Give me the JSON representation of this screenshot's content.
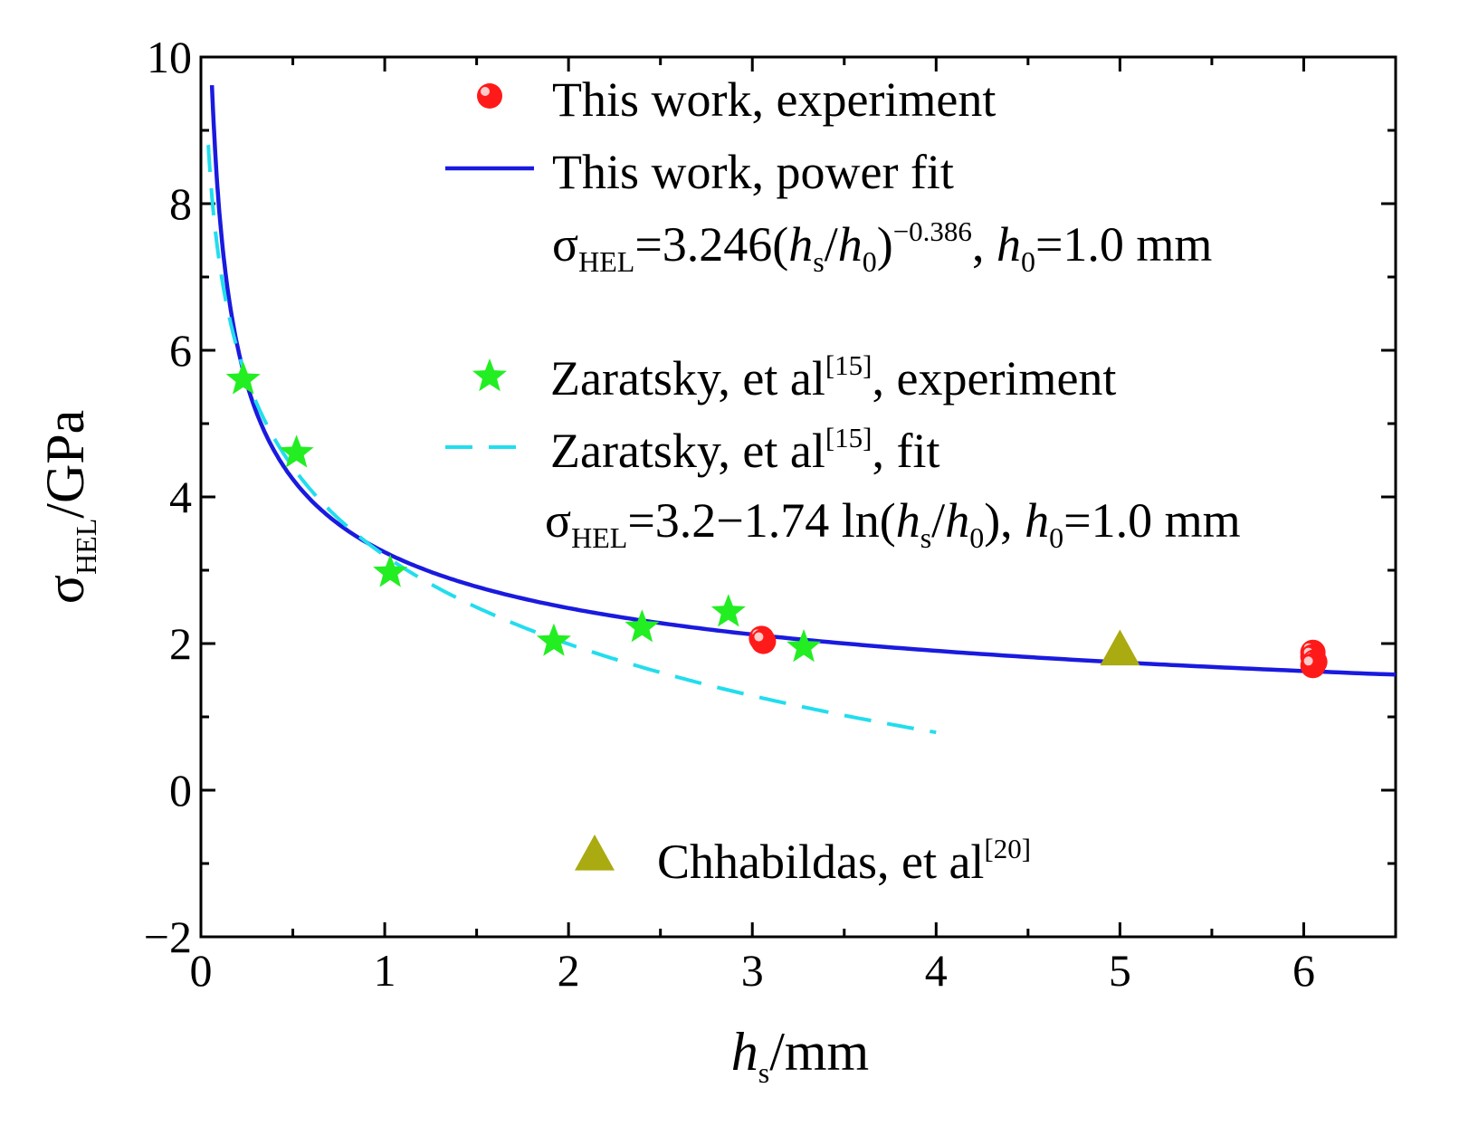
{
  "chart_data": {
    "type": "scatter",
    "xlabel": {
      "var": "h",
      "sub": "s",
      "unit": "/mm"
    },
    "ylabel": {
      "var": "σ",
      "sub": "HEL",
      "unit": "/GPa"
    },
    "xlim": [
      0,
      6.5
    ],
    "ylim": [
      -2,
      10
    ],
    "x_ticks": [
      "0",
      "1",
      "2",
      "3",
      "4",
      "5",
      "6"
    ],
    "y_ticks": [
      "−2",
      "0",
      "2",
      "4",
      "6",
      "8",
      "10"
    ],
    "series": [
      {
        "name": "This work, experiment",
        "kind": "points",
        "marker": "circle",
        "color": "#ff1a1a",
        "x": [
          3.05,
          3.06,
          6.05,
          6.05,
          6.06,
          6.05
        ],
        "y": [
          2.07,
          2.03,
          1.88,
          1.82,
          1.75,
          1.7
        ]
      },
      {
        "name": "This work, power fit",
        "kind": "line",
        "style": "solid",
        "color": "#1a1adf",
        "equation": {
          "coef": 3.246,
          "exponent": -0.386,
          "h0": 1.0
        },
        "x_range": [
          0.06,
          6.5
        ]
      },
      {
        "name": "Zaratsky, et al[15], experiment",
        "kind": "points",
        "marker": "star",
        "color": "#22ee22",
        "x": [
          0.23,
          0.52,
          1.03,
          1.92,
          2.4,
          2.87,
          3.28
        ],
        "y": [
          5.6,
          4.6,
          2.97,
          2.03,
          2.22,
          2.43,
          1.95
        ]
      },
      {
        "name": "Zaratsky, et al[15], fit",
        "kind": "line",
        "style": "dashed",
        "color": "#22ddee",
        "equation": {
          "a": 3.2,
          "b": 1.74,
          "h0": 1.0
        },
        "x_range": [
          0.04,
          4.0
        ]
      },
      {
        "name": "Chhabildas, et al[20]",
        "kind": "points",
        "marker": "triangle",
        "color": "#aaaa11",
        "x": [
          5.0
        ],
        "y": [
          1.92
        ]
      }
    ],
    "legend": {
      "position": "top-right",
      "items": [
        {
          "marker": "circle",
          "parts": [
            {
              "t": "This work, experiment"
            }
          ]
        },
        {
          "marker": "line-solid",
          "parts": [
            {
              "t": "This work, power fit"
            }
          ]
        },
        {
          "marker": "none",
          "formula": true,
          "parts": [
            {
              "t": "σ"
            },
            {
              "t": "HEL",
              "s": "sub"
            },
            {
              "t": "=3.246("
            },
            {
              "t": "h",
              "i": true
            },
            {
              "t": "s",
              "s": "sub"
            },
            {
              "t": "/"
            },
            {
              "t": "h",
              "i": true
            },
            {
              "t": "0",
              "s": "sub"
            },
            {
              "t": ")"
            },
            {
              "t": "−0.386",
              "s": "sup"
            },
            {
              "t": ", "
            },
            {
              "t": "h",
              "i": true
            },
            {
              "t": "0",
              "s": "sub"
            },
            {
              "t": "=1.0 mm"
            }
          ]
        },
        {
          "marker": "star",
          "parts": [
            {
              "t": "Zaratsky, et al"
            },
            {
              "t": "[15]",
              "s": "sup"
            },
            {
              "t": ", experiment"
            }
          ]
        },
        {
          "marker": "line-dashed",
          "parts": [
            {
              "t": "Zaratsky, et al"
            },
            {
              "t": "[15]",
              "s": "sup"
            },
            {
              "t": ", fit"
            }
          ]
        },
        {
          "marker": "none",
          "formula": true,
          "parts": [
            {
              "t": "σ"
            },
            {
              "t": "HEL",
              "s": "sub"
            },
            {
              "t": "=3.2−1.74 ln("
            },
            {
              "t": "h",
              "i": true
            },
            {
              "t": "s",
              "s": "sub"
            },
            {
              "t": "/"
            },
            {
              "t": "h",
              "i": true
            },
            {
              "t": "0",
              "s": "sub"
            },
            {
              "t": "), "
            },
            {
              "t": "h",
              "i": true
            },
            {
              "t": "0",
              "s": "sub"
            },
            {
              "t": "=1.0 mm"
            }
          ]
        },
        {
          "marker": "triangle",
          "parts": [
            {
              "t": "Chhabildas, et al"
            },
            {
              "t": "[20]",
              "s": "sup"
            }
          ]
        }
      ]
    },
    "grid": false
  }
}
